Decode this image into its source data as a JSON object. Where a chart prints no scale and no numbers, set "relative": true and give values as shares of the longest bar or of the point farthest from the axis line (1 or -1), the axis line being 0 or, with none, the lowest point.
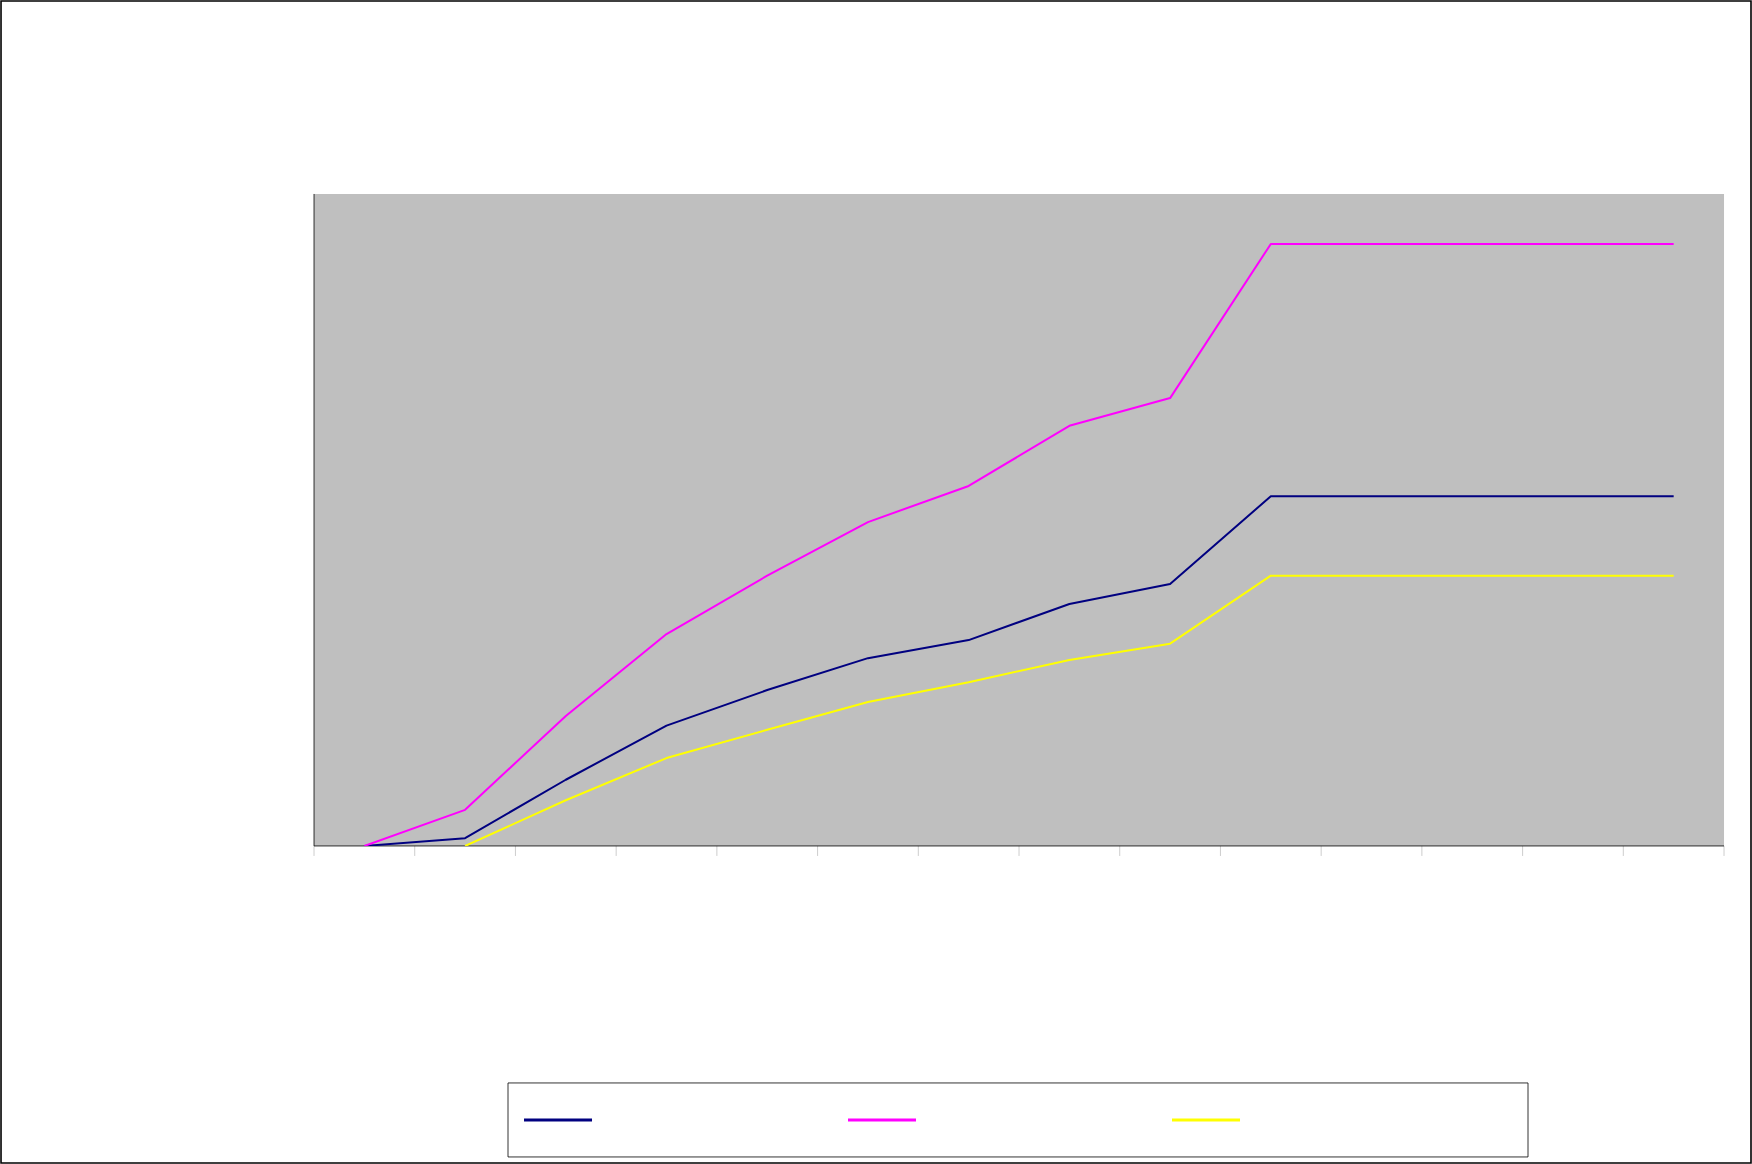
{
  "chart_data": {
    "type": "line",
    "relative": true,
    "categories": [
      null,
      null,
      null,
      null,
      null,
      null,
      null,
      null,
      null,
      null,
      null,
      null,
      null,
      null
    ],
    "series": [
      {
        "color": "#000080",
        "values": [
          0,
          0.013,
          0.11,
          0.2,
          0.259,
          0.312,
          0.342,
          0.402,
          0.435,
          0.581,
          0.581,
          0.581,
          0.581,
          0.581
        ]
      },
      {
        "color": "#ff00ff",
        "values": [
          0,
          0.06,
          0.216,
          0.352,
          0.449,
          0.538,
          0.598,
          0.698,
          0.744,
          1,
          1,
          1,
          1,
          1
        ]
      },
      {
        "color": "#ffff00",
        "values": [
          null,
          0,
          0.076,
          0.146,
          0.193,
          0.239,
          0.272,
          0.309,
          0.336,
          0.449,
          0.449,
          0.449,
          0.449,
          0.449
        ]
      }
    ],
    "tick_labels": false,
    "marker": "none",
    "line_style": "solid"
  }
}
